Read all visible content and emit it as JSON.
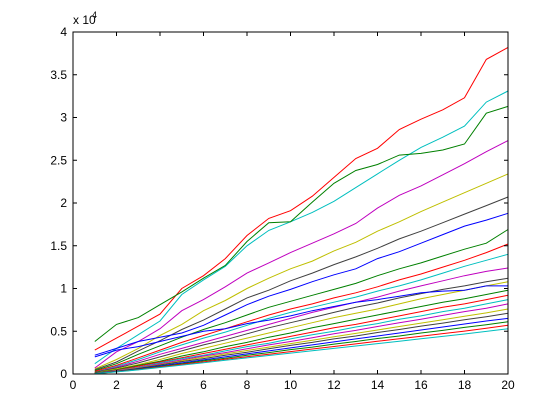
{
  "chart_data": {
    "type": "line",
    "title": "",
    "xlabel": "",
    "ylabel": "",
    "y_exponent_label": "x 10",
    "y_exponent_power": "4",
    "x": [
      1,
      2,
      3,
      4,
      5,
      6,
      7,
      8,
      9,
      10,
      11,
      12,
      13,
      14,
      15,
      16,
      17,
      18,
      19,
      20
    ],
    "xlim": [
      0,
      20
    ],
    "ylim": [
      0,
      40000
    ],
    "x_ticks": [
      0,
      2,
      4,
      6,
      8,
      10,
      12,
      14,
      16,
      18,
      20
    ],
    "x_tick_labels": [
      "0",
      "2",
      "4",
      "6",
      "8",
      "10",
      "12",
      "14",
      "16",
      "18",
      "20"
    ],
    "y_ticks": [
      0,
      5000,
      10000,
      15000,
      20000,
      25000,
      30000,
      35000,
      40000
    ],
    "y_tick_labels": [
      "0",
      "0.5",
      "1",
      "1.5",
      "2",
      "2.5",
      "3",
      "3.5",
      "4"
    ],
    "grid": false,
    "legend": "none",
    "series": [
      {
        "color": "#ff0000",
        "values": [
          2800,
          4200,
          5600,
          7000,
          10000,
          11500,
          13500,
          16200,
          18200,
          19100,
          20800,
          23000,
          25200,
          26400,
          28600,
          29800,
          30900,
          32300,
          36800,
          38200
        ]
      },
      {
        "color": "#00bfbf",
        "values": [
          1200,
          3000,
          4600,
          6200,
          9300,
          11000,
          12600,
          15000,
          16800,
          17800,
          18900,
          20200,
          21800,
          23400,
          25000,
          26500,
          27700,
          29000,
          31800,
          33100
        ]
      },
      {
        "color": "#008000",
        "values": [
          3800,
          5800,
          6600,
          8100,
          9600,
          11200,
          12700,
          15500,
          17700,
          17800,
          20100,
          22300,
          23800,
          24500,
          25600,
          25800,
          26200,
          26900,
          30500,
          31300
        ]
      },
      {
        "color": "#bf00bf",
        "values": [
          700,
          2600,
          3800,
          5300,
          7400,
          8700,
          10200,
          11800,
          13000,
          14200,
          15300,
          16400,
          17600,
          19400,
          20900,
          22000,
          23300,
          24600,
          26000,
          27300
        ]
      },
      {
        "color": "#bfbf00",
        "values": [
          600,
          1700,
          3000,
          4500,
          5800,
          7400,
          8600,
          10000,
          11200,
          12300,
          13200,
          14400,
          15400,
          16700,
          17800,
          19000,
          20100,
          21200,
          22300,
          23400
        ]
      },
      {
        "color": "#404040",
        "values": [
          500,
          1400,
          2700,
          3900,
          5200,
          6300,
          7600,
          8900,
          9800,
          10900,
          11800,
          12800,
          13700,
          14700,
          15800,
          16700,
          17700,
          18700,
          19700,
          20700
        ]
      },
      {
        "color": "#0000ff",
        "values": [
          2200,
          3000,
          3800,
          4300,
          4800,
          5700,
          6900,
          8100,
          9100,
          9900,
          10800,
          11600,
          12300,
          13500,
          14300,
          15300,
          16300,
          17300,
          18000,
          18800
        ]
      },
      {
        "color": "#008000",
        "values": [
          400,
          1200,
          2300,
          3300,
          4300,
          5200,
          6000,
          6900,
          7800,
          8500,
          9200,
          9900,
          10600,
          11500,
          12300,
          13000,
          13800,
          14600,
          15300,
          16900
        ]
      },
      {
        "color": "#ff0000",
        "values": [
          300,
          1000,
          1900,
          2800,
          3700,
          4500,
          5300,
          6100,
          6900,
          7600,
          8200,
          8900,
          9500,
          10200,
          11000,
          11700,
          12500,
          13300,
          14200,
          15200
        ]
      },
      {
        "color": "#00bfbf",
        "values": [
          200,
          900,
          1700,
          2600,
          3400,
          4200,
          4900,
          5700,
          6500,
          7200,
          7800,
          8400,
          9000,
          9700,
          10300,
          11000,
          11800,
          12600,
          13300,
          14000
        ]
      },
      {
        "color": "#bf00bf",
        "values": [
          200,
          800,
          1500,
          2300,
          3000,
          3700,
          4400,
          5100,
          5800,
          6500,
          7200,
          7800,
          8400,
          9000,
          9700,
          10300,
          10900,
          11500,
          12000,
          12400
        ]
      },
      {
        "color": "#404040",
        "values": [
          200,
          700,
          1300,
          2000,
          2700,
          3400,
          4000,
          4700,
          5400,
          6000,
          6600,
          7200,
          7800,
          8300,
          8900,
          9400,
          9900,
          10300,
          10800,
          11200
        ]
      },
      {
        "color": "#bfbf00",
        "values": [
          150,
          600,
          1100,
          1700,
          2400,
          3000,
          3600,
          4200,
          4800,
          5400,
          6000,
          6600,
          7100,
          7600,
          8200,
          8800,
          9300,
          9800,
          10300,
          10800
        ]
      },
      {
        "color": "#0000ff",
        "values": [
          2000,
          2800,
          3200,
          3800,
          4400,
          5000,
          5300,
          5900,
          6300,
          6800,
          7400,
          7900,
          8400,
          8700,
          9100,
          9500,
          9700,
          9800,
          10300,
          10300
        ]
      },
      {
        "color": "#008000",
        "values": [
          150,
          500,
          1000,
          1500,
          2100,
          2600,
          3200,
          3700,
          4300,
          4800,
          5400,
          5900,
          6400,
          6900,
          7400,
          7900,
          8400,
          8800,
          9300,
          9800
        ]
      },
      {
        "color": "#ff0000",
        "values": [
          100,
          450,
          900,
          1400,
          1900,
          2400,
          2900,
          3400,
          3900,
          4400,
          4900,
          5400,
          5800,
          6300,
          6800,
          7300,
          7800,
          8200,
          8700,
          9200
        ]
      },
      {
        "color": "#00bfbf",
        "values": [
          100,
          400,
          800,
          1300,
          1800,
          2200,
          2700,
          3200,
          3600,
          4100,
          4600,
          5000,
          5500,
          5900,
          6400,
          6800,
          7300,
          7700,
          8200,
          8700
        ]
      },
      {
        "color": "#bf00bf",
        "values": [
          100,
          380,
          750,
          1200,
          1650,
          2100,
          2500,
          2950,
          3400,
          3800,
          4250,
          4700,
          5100,
          5550,
          6000,
          6400,
          6850,
          7300,
          7700,
          8200
        ]
      },
      {
        "color": "#bfbf00",
        "values": [
          80,
          350,
          700,
          1100,
          1550,
          1950,
          2350,
          2750,
          3150,
          3550,
          3950,
          4350,
          4750,
          5150,
          5550,
          5950,
          6350,
          6750,
          7150,
          7600
        ]
      },
      {
        "color": "#404040",
        "values": [
          80,
          330,
          650,
          1050,
          1450,
          1800,
          2200,
          2550,
          2950,
          3350,
          3700,
          4100,
          4450,
          4850,
          5200,
          5600,
          5950,
          6350,
          6700,
          7100
        ]
      },
      {
        "color": "#0000ff",
        "values": [
          60,
          300,
          600,
          950,
          1300,
          1650,
          2000,
          2350,
          2700,
          3050,
          3400,
          3750,
          4100,
          4450,
          4800,
          5150,
          5500,
          5850,
          6200,
          6500
        ]
      },
      {
        "color": "#008000",
        "values": [
          60,
          280,
          560,
          880,
          1200,
          1550,
          1850,
          2200,
          2500,
          2850,
          3150,
          3500,
          3800,
          4150,
          4450,
          4800,
          5100,
          5450,
          5750,
          6100
        ]
      },
      {
        "color": "#ff0000",
        "values": [
          50,
          260,
          520,
          820,
          1120,
          1420,
          1720,
          2020,
          2320,
          2620,
          2920,
          3220,
          3520,
          3820,
          4120,
          4420,
          4720,
          5020,
          5350,
          5700
        ]
      },
      {
        "color": "#00bfbf",
        "values": [
          50,
          240,
          480,
          760,
          1040,
          1320,
          1600,
          1880,
          2160,
          2440,
          2720,
          3000,
          3280,
          3560,
          3840,
          4120,
          4400,
          4680,
          4980,
          5300
        ]
      }
    ]
  }
}
